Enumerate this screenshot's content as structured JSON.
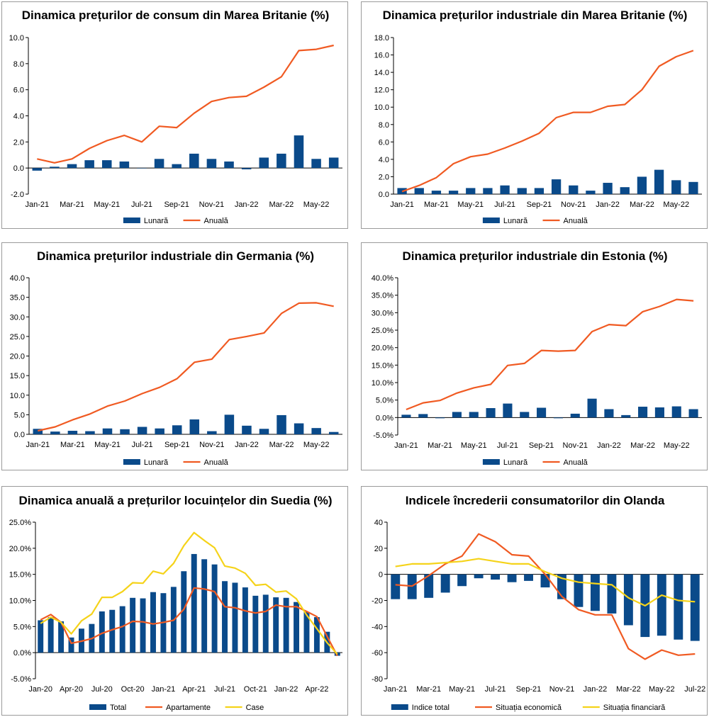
{
  "colors": {
    "bar": "#0a4a8a",
    "line_orange": "#f05a22",
    "line_yellow": "#f5d31a",
    "axis": "#000000",
    "grid": "#a0a0a0"
  },
  "chart_data": [
    {
      "id": "uk-cpi",
      "type": "bar+line",
      "title": "Dinamica prețurilor de consum din Marea Britanie (%)",
      "categories": [
        "Jan-21",
        "Feb-21",
        "Mar-21",
        "Apr-21",
        "May-21",
        "Jun-21",
        "Jul-21",
        "Aug-21",
        "Sep-21",
        "Oct-21",
        "Nov-21",
        "Dec-21",
        "Jan-22",
        "Feb-22",
        "Mar-22",
        "Apr-22",
        "May-22",
        "Jun-22"
      ],
      "x_tick_labels": [
        "Jan-21",
        "Mar-21",
        "May-21",
        "Jul-21",
        "Sep-21",
        "Nov-21",
        "Jan-22",
        "Mar-22",
        "May-22"
      ],
      "ylim": [
        -2,
        10
      ],
      "ytick_step": 2,
      "ytick_decimals": 1,
      "ytick_suffix": "",
      "bars": {
        "name": "Lunară",
        "values": [
          -0.2,
          0.1,
          0.3,
          0.6,
          0.6,
          0.5,
          0.0,
          0.7,
          0.3,
          1.1,
          0.7,
          0.5,
          -0.1,
          0.8,
          1.1,
          2.5,
          0.7,
          0.8
        ]
      },
      "lines": [
        {
          "name": "Anuală",
          "color": "#f05a22",
          "values": [
            0.7,
            0.4,
            0.7,
            1.5,
            2.1,
            2.5,
            2.0,
            3.2,
            3.1,
            4.2,
            5.1,
            5.4,
            5.5,
            6.2,
            7.0,
            9.0,
            9.1,
            9.4
          ]
        }
      ],
      "legend": [
        "Lunară",
        "Anuală"
      ]
    },
    {
      "id": "uk-ppi",
      "type": "bar+line",
      "title": "Dinamica prețurilor industriale din Marea Britanie (%)",
      "categories": [
        "Jan-21",
        "Feb-21",
        "Mar-21",
        "Apr-21",
        "May-21",
        "Jun-21",
        "Jul-21",
        "Aug-21",
        "Sep-21",
        "Oct-21",
        "Nov-21",
        "Dec-21",
        "Jan-22",
        "Feb-22",
        "Mar-22",
        "Apr-22",
        "May-22",
        "Jun-22"
      ],
      "x_tick_labels": [
        "Jan-21",
        "Mar-21",
        "May-21",
        "Jul-21",
        "Sep-21",
        "Nov-21",
        "Jan-22",
        "Mar-22",
        "May-22"
      ],
      "ylim": [
        0,
        18
      ],
      "ytick_step": 2,
      "ytick_decimals": 1,
      "ytick_suffix": "",
      "bars": {
        "name": "Lunară",
        "values": [
          0.7,
          0.7,
          0.4,
          0.4,
          0.7,
          0.7,
          1.0,
          0.7,
          0.7,
          1.7,
          1.0,
          0.4,
          1.3,
          0.8,
          2.0,
          2.8,
          1.6,
          1.4
        ]
      },
      "lines": [
        {
          "name": "Anuală",
          "color": "#f05a22",
          "values": [
            0.3,
            1.0,
            1.9,
            3.5,
            4.3,
            4.6,
            5.3,
            6.1,
            7.0,
            8.8,
            9.4,
            9.4,
            10.1,
            10.3,
            12.0,
            14.7,
            15.8,
            16.5
          ]
        }
      ],
      "legend": [
        "Lunară",
        "Anuală"
      ]
    },
    {
      "id": "de-ppi",
      "type": "bar+line",
      "title": "Dinamica prețurilor industriale din Germania (%)",
      "categories": [
        "Jan-21",
        "Feb-21",
        "Mar-21",
        "Apr-21",
        "May-21",
        "Jun-21",
        "Jul-21",
        "Aug-21",
        "Sep-21",
        "Oct-21",
        "Nov-21",
        "Dec-21",
        "Jan-22",
        "Feb-22",
        "Mar-22",
        "Apr-22",
        "May-22",
        "Jun-22"
      ],
      "x_tick_labels": [
        "Jan-21",
        "Mar-21",
        "May-21",
        "Jul-21",
        "Sep-21",
        "Nov-21",
        "Jan-22",
        "Mar-22",
        "May-22"
      ],
      "ylim": [
        0,
        40
      ],
      "ytick_step": 5,
      "ytick_decimals": 1,
      "ytick_suffix": "",
      "bars": {
        "name": "Lunară",
        "values": [
          1.4,
          0.7,
          0.9,
          0.8,
          1.5,
          1.3,
          1.9,
          1.5,
          2.3,
          3.8,
          0.8,
          5.0,
          2.2,
          1.4,
          4.9,
          2.8,
          1.6,
          0.6
        ]
      },
      "lines": [
        {
          "name": "Anuală",
          "color": "#f05a22",
          "values": [
            0.9,
            1.9,
            3.7,
            5.2,
            7.2,
            8.5,
            10.4,
            12.0,
            14.2,
            18.4,
            19.2,
            24.2,
            25.0,
            25.9,
            30.9,
            33.5,
            33.6,
            32.7
          ]
        }
      ],
      "legend": [
        "Lunară",
        "Anuală"
      ]
    },
    {
      "id": "ee-ppi",
      "type": "bar+line",
      "title": "Dinamica prețurilor industriale din Estonia (%)",
      "categories": [
        "Jan-21",
        "Feb-21",
        "Mar-21",
        "Apr-21",
        "May-21",
        "Jun-21",
        "Jul-21",
        "Aug-21",
        "Sep-21",
        "Oct-21",
        "Nov-21",
        "Dec-21",
        "Jan-22",
        "Feb-22",
        "Mar-22",
        "Apr-22",
        "May-22",
        "Jun-22"
      ],
      "x_tick_labels": [
        "Jan-21",
        "Mar-21",
        "May-21",
        "Jul-21",
        "Sep-21",
        "Nov-21",
        "Jan-22",
        "Mar-22",
        "May-22"
      ],
      "ylim": [
        -5,
        40
      ],
      "ytick_step": 5,
      "ytick_decimals": 1,
      "ytick_suffix": "%",
      "bars": {
        "name": "Lunară",
        "values": [
          0.8,
          1.0,
          -0.2,
          1.6,
          1.6,
          2.7,
          4.0,
          1.6,
          2.8,
          -0.2,
          1.1,
          5.4,
          2.4,
          0.7,
          3.1,
          2.9,
          3.2,
          2.4
        ]
      },
      "lines": [
        {
          "name": "Anuală",
          "color": "#f05a22",
          "values": [
            2.3,
            4.2,
            4.9,
            7.0,
            8.5,
            9.5,
            14.9,
            15.5,
            19.2,
            19.0,
            19.2,
            24.6,
            26.6,
            26.3,
            30.3,
            31.8,
            33.8,
            33.4
          ]
        }
      ],
      "legend": [
        "Lunară",
        "Anuală"
      ]
    },
    {
      "id": "se-housing",
      "type": "bar+line",
      "title": "Dinamica anuală a prețurilor locuințelor din Suedia (%)",
      "categories": [
        "Jan-20",
        "Feb-20",
        "Mar-20",
        "Apr-20",
        "May-20",
        "Jun-20",
        "Jul-20",
        "Aug-20",
        "Sep-20",
        "Oct-20",
        "Nov-20",
        "Dec-20",
        "Jan-21",
        "Feb-21",
        "Mar-21",
        "Apr-21",
        "May-21",
        "Jun-21",
        "Jul-21",
        "Aug-21",
        "Sep-21",
        "Oct-21",
        "Nov-21",
        "Dec-21",
        "Jan-22",
        "Feb-22",
        "Mar-22",
        "Apr-22",
        "May-22",
        "Jun-22"
      ],
      "x_tick_labels": [
        "Jan-20",
        "Apr-20",
        "Jul-20",
        "Oct-20",
        "Jan-21",
        "Apr-21",
        "Jul-21",
        "Oct-21",
        "Jan-22",
        "Apr-22"
      ],
      "ylim": [
        -5,
        25
      ],
      "ytick_step": 5,
      "ytick_decimals": 1,
      "ytick_suffix": "%",
      "bars": {
        "name": "Total",
        "values": [
          6.2,
          6.8,
          6.0,
          2.9,
          4.6,
          5.5,
          7.9,
          8.2,
          8.9,
          10.5,
          10.4,
          11.6,
          11.4,
          12.6,
          15.6,
          18.9,
          17.9,
          16.9,
          13.7,
          13.4,
          12.5,
          10.9,
          11.1,
          10.6,
          10.5,
          9.7,
          7.8,
          6.8,
          4.0,
          -0.6
        ]
      },
      "lines": [
        {
          "name": "Apartamente",
          "color": "#f05a22",
          "values": [
            6.3,
            7.3,
            5.8,
            1.8,
            2.2,
            2.7,
            3.7,
            4.4,
            5.0,
            6.0,
            5.9,
            5.5,
            5.8,
            6.2,
            8.3,
            12.4,
            12.2,
            11.7,
            8.8,
            8.6,
            8.0,
            7.6,
            7.9,
            9.1,
            8.8,
            8.8,
            7.9,
            6.9,
            3.1,
            -0.6
          ]
        },
        {
          "name": "Case",
          "color": "#f5d31a",
          "values": [
            5.6,
            6.8,
            5.8,
            3.6,
            6.1,
            7.4,
            10.6,
            10.6,
            11.7,
            13.4,
            13.3,
            15.6,
            15.1,
            17.1,
            20.5,
            23.0,
            21.5,
            20.1,
            16.6,
            16.2,
            15.2,
            12.9,
            13.1,
            11.6,
            11.8,
            10.3,
            7.2,
            4.6,
            1.9,
            -0.3
          ]
        }
      ],
      "legend": [
        "Total",
        "Apartamente",
        "Case"
      ]
    },
    {
      "id": "nl-confidence",
      "type": "bar+line",
      "title": "Indicele încrederii consumatorilor din Olanda",
      "categories": [
        "Jan-21",
        "Feb-21",
        "Mar-21",
        "Apr-21",
        "May-21",
        "Jun-21",
        "Jul-21",
        "Aug-21",
        "Sep-21",
        "Oct-21",
        "Nov-21",
        "Dec-21",
        "Jan-22",
        "Feb-22",
        "Mar-22",
        "Apr-22",
        "May-22",
        "Jun-22",
        "Jul-22"
      ],
      "x_tick_labels": [
        "Jan-21",
        "Mar-21",
        "May-21",
        "Jul-21",
        "Sep-21",
        "Nov-21",
        "Jan-22",
        "Mar-22",
        "May-22",
        "Jul-22"
      ],
      "ylim": [
        -80,
        40
      ],
      "ytick_step": 20,
      "ytick_decimals": 0,
      "ytick_suffix": "",
      "bars": {
        "name": "Indice total",
        "values": [
          -19,
          -19,
          -18,
          -14,
          -9,
          -3,
          -4,
          -6,
          -5,
          -10,
          -19,
          -25,
          -28,
          -30,
          -39,
          -48,
          -47,
          -50,
          -51
        ]
      },
      "lines": [
        {
          "name": "Situația economică",
          "color": "#f05a22",
          "values": [
            -8,
            -9,
            -1,
            8,
            14,
            31,
            25,
            15,
            14,
            0,
            -17,
            -27,
            -31,
            -31,
            -57,
            -65,
            -58,
            -62,
            -61
          ]
        },
        {
          "name": "Situația financiară",
          "color": "#f5d31a",
          "values": [
            6,
            8,
            8,
            9,
            10,
            12,
            10,
            8,
            8,
            2,
            -3,
            -6,
            -7,
            -8,
            -18,
            -24,
            -16,
            -20,
            -21
          ]
        }
      ],
      "legend": [
        "Indice total",
        "Situația economică",
        "Situația financiară"
      ]
    }
  ]
}
